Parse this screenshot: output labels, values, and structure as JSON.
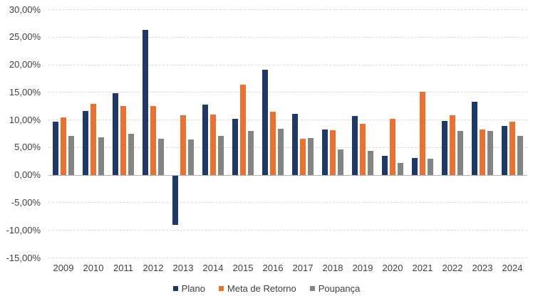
{
  "chart_data": {
    "type": "bar",
    "title": "",
    "categories": [
      "2009",
      "2010",
      "2011",
      "2012",
      "2013",
      "2014",
      "2015",
      "2016",
      "2017",
      "2018",
      "2019",
      "2020",
      "2021",
      "2022",
      "2023",
      "2024"
    ],
    "series": [
      {
        "name": "Plano",
        "color": "#1F3864",
        "values": [
          9.6,
          11.6,
          14.8,
          26.3,
          -9.0,
          12.7,
          10.1,
          19.0,
          11.0,
          8.2,
          10.6,
          3.4,
          3.1,
          9.8,
          13.2,
          8.9
        ]
      },
      {
        "name": "Meta de Retorno",
        "color": "#E97132",
        "values": [
          10.4,
          12.8,
          12.4,
          12.5,
          10.8,
          10.9,
          16.3,
          11.4,
          6.5,
          8.1,
          9.2,
          10.2,
          15.1,
          10.8,
          8.2,
          9.6
        ]
      },
      {
        "name": "Poupança",
        "color": "#848484",
        "values": [
          7.1,
          6.8,
          7.5,
          6.5,
          6.4,
          7.1,
          8.0,
          8.3,
          6.6,
          4.6,
          4.3,
          2.1,
          2.9,
          7.9,
          8.0,
          7.0
        ]
      }
    ],
    "ylim": [
      -15,
      30
    ],
    "ytick_step": 5,
    "ytick_labels": [
      "30,00%",
      "25,00%",
      "20,00%",
      "15,00%",
      "10,00%",
      "5,00%",
      "0,00%",
      "-5,00%",
      "-10,00%",
      "-15,00%"
    ],
    "value_format": "percent_comma_decimal",
    "grid": true,
    "gridline_color": "#D9D9D9",
    "zero_line_color": "#B3B3B3",
    "axis_text_color": "#404040",
    "legend_position": "bottom"
  }
}
